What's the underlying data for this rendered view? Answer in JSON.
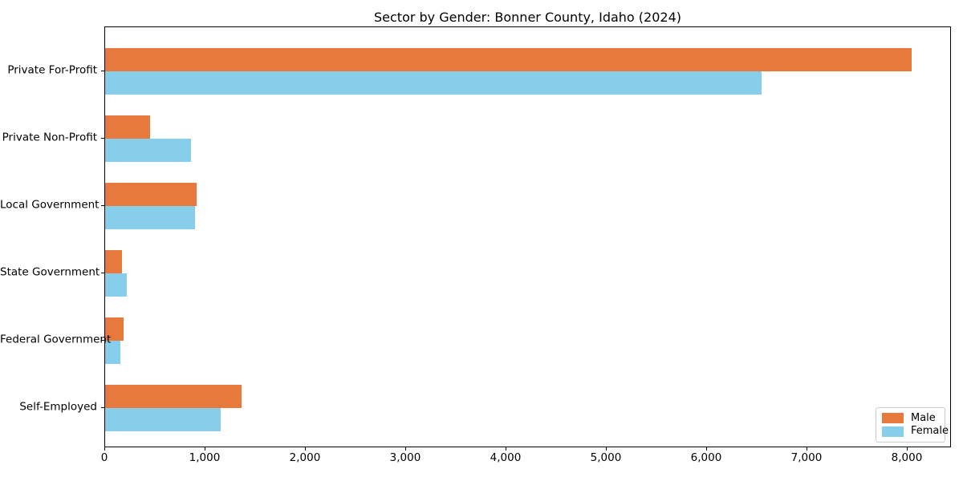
{
  "chart_data": {
    "type": "bar",
    "orientation": "horizontal",
    "title": "Sector by Gender: Bonner County, Idaho (2024)",
    "categories": [
      "Private For-Profit",
      "Private Non-Profit",
      "Local Government",
      "State Government",
      "Federal Government",
      "Self-Employed"
    ],
    "series": [
      {
        "name": "Male",
        "color": "#E8793C",
        "values": [
          8040,
          450,
          915,
          170,
          185,
          1360
        ]
      },
      {
        "name": "Female",
        "color": "#87CEEB",
        "values": [
          6540,
          855,
          895,
          215,
          150,
          1150
        ]
      }
    ],
    "xlim": [
      0,
      8440
    ],
    "xticks": [
      0,
      1000,
      2000,
      3000,
      4000,
      5000,
      6000,
      7000,
      8000
    ],
    "xtick_labels": [
      "0",
      "1,000",
      "2,000",
      "3,000",
      "4,000",
      "5,000",
      "6,000",
      "7,000",
      "8,000"
    ],
    "xlabel": "",
    "ylabel": "",
    "grid": false,
    "legend": {
      "position": "lower-right",
      "entries": [
        {
          "label": "Male",
          "color": "#E8793C"
        },
        {
          "label": "Female",
          "color": "#87CEEB"
        }
      ]
    },
    "colors": {
      "male": "#E8793C",
      "female": "#87CEEB",
      "spine": "#000000",
      "background": "#ffffff",
      "legend_border": "#cccccc"
    }
  }
}
